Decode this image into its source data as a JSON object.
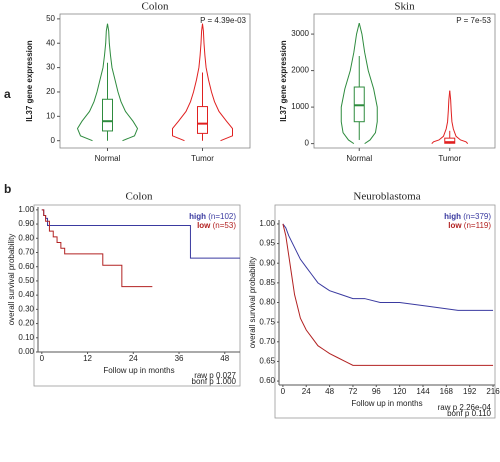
{
  "panel_labels": [
    "a",
    "b"
  ],
  "chart_data": [
    {
      "type": "violin",
      "title": "Colon",
      "ylabel": "IL37 gene expression",
      "annotation": "P = 4.39e-03",
      "categories": [
        "Normal",
        "Tumor"
      ],
      "ylim": [
        -3,
        52
      ],
      "yticks": [
        0,
        10,
        20,
        30,
        40,
        50
      ],
      "violins": [
        {
          "color": "#2e8b3e",
          "levels": [
            0,
            2,
            5,
            8,
            12,
            16,
            20,
            25,
            30,
            35,
            40,
            45,
            48
          ],
          "density": [
            0.5,
            0.9,
            1.0,
            0.85,
            0.6,
            0.45,
            0.35,
            0.25,
            0.15,
            0.1,
            0.06,
            0.04,
            0
          ],
          "box": {
            "min": 0,
            "q1": 4,
            "median": 8,
            "q3": 17,
            "max": 32
          }
        },
        {
          "color": "#e02020",
          "levels": [
            0,
            2,
            5,
            8,
            12,
            16,
            20,
            25,
            30,
            35,
            40,
            45,
            48
          ],
          "density": [
            0.6,
            1.0,
            1.0,
            0.8,
            0.55,
            0.4,
            0.3,
            0.2,
            0.12,
            0.08,
            0.05,
            0.03,
            0
          ],
          "box": {
            "min": 0,
            "q1": 3,
            "median": 7,
            "q3": 14,
            "max": 28
          }
        }
      ]
    },
    {
      "type": "violin",
      "title": "Skin",
      "ylabel": "IL37 gene expression",
      "annotation": "P = 7e-53",
      "categories": [
        "Normal",
        "Tumor"
      ],
      "ylim": [
        -120,
        3550
      ],
      "yticks": [
        0,
        1000,
        2000,
        3000
      ],
      "violins": [
        {
          "color": "#2e8b3e",
          "levels": [
            0,
            100,
            300,
            600,
            1000,
            1500,
            2000,
            2500,
            3000,
            3300
          ],
          "density": [
            0.3,
            0.6,
            0.9,
            1.0,
            1.0,
            0.8,
            0.5,
            0.3,
            0.15,
            0
          ],
          "box": {
            "min": 100,
            "q1": 600,
            "median": 1050,
            "q3": 1550,
            "max": 2400
          }
        },
        {
          "color": "#e02020",
          "levels": [
            0,
            50,
            100,
            200,
            400,
            600,
            900,
            1200,
            1450
          ],
          "density": [
            1.0,
            0.9,
            0.6,
            0.35,
            0.2,
            0.12,
            0.08,
            0.05,
            0
          ],
          "box": {
            "min": 0,
            "q1": 10,
            "median": 40,
            "q3": 150,
            "max": 350
          }
        }
      ]
    },
    {
      "type": "line",
      "title": "Colon",
      "xlabel": "Follow up in months",
      "ylabel": "overall survival probability",
      "xlim": [
        -1,
        52
      ],
      "xticks": [
        0,
        12,
        24,
        36,
        48
      ],
      "ylim": [
        0,
        1.02
      ],
      "yticks": [
        {
          "value": 0,
          "label": "0.00"
        },
        {
          "value": 0.1,
          "label": "0.10"
        },
        {
          "value": 0.2,
          "label": "0.20"
        },
        {
          "value": 0.3,
          "label": "0.30"
        },
        {
          "value": 0.4,
          "label": "0.40"
        },
        {
          "value": 0.5,
          "label": "0.50"
        },
        {
          "value": 0.6,
          "label": "0.60"
        },
        {
          "value": 0.7,
          "label": "0.70"
        },
        {
          "value": 0.8,
          "label": "0.80"
        },
        {
          "value": 0.9,
          "label": "0.90"
        },
        {
          "value": 1,
          "label": "1.00"
        }
      ],
      "legend": "upper right",
      "stats": [
        "raw p 0.027",
        "bonf p 1.000"
      ],
      "series": [
        {
          "name": "high",
          "n_label": "(n=102)",
          "color": "#3a3aa0",
          "x": [
            0,
            0.5,
            0.5,
            1,
            1,
            1.5,
            1.5,
            39,
            39,
            52
          ],
          "values": [
            1,
            1,
            0.96,
            0.96,
            0.94,
            0.94,
            0.89,
            0.89,
            0.66,
            0.66
          ]
        },
        {
          "name": "low",
          "n_label": "(n=53)",
          "color": "#b22222",
          "x": [
            0,
            0.5,
            0.5,
            1,
            1,
            2,
            2,
            3,
            3,
            4,
            4,
            5,
            5,
            6,
            6,
            16,
            16,
            21,
            21,
            29
          ],
          "values": [
            1,
            1,
            0.96,
            0.96,
            0.92,
            0.92,
            0.85,
            0.85,
            0.81,
            0.81,
            0.77,
            0.77,
            0.73,
            0.73,
            0.69,
            0.69,
            0.61,
            0.61,
            0.46,
            0.46
          ]
        }
      ]
    },
    {
      "type": "line",
      "title": "Neuroblastoma",
      "xlabel": "Follow up in months",
      "ylabel": "overall survival probability",
      "xlim": [
        -4,
        218
      ],
      "xticks": [
        0,
        24,
        48,
        72,
        96,
        120,
        144,
        168,
        192,
        216
      ],
      "ylim": [
        0.59,
        1.01
      ],
      "yticks": [
        {
          "value": 0.6,
          "label": "0.60"
        },
        {
          "value": 0.65,
          "label": "0.65"
        },
        {
          "value": 0.7,
          "label": "0.70"
        },
        {
          "value": 0.75,
          "label": "0.75"
        },
        {
          "value": 0.8,
          "label": "0.80"
        },
        {
          "value": 0.85,
          "label": "0.85"
        },
        {
          "value": 0.9,
          "label": "0.90"
        },
        {
          "value": 0.95,
          "label": "0.95"
        },
        {
          "value": 1,
          "label": "1.00"
        }
      ],
      "legend": "upper right",
      "stats": [
        "raw p 2.26e-04",
        "bonf p 0.110"
      ],
      "series": [
        {
          "name": "high",
          "n_label": "(n=379)",
          "color": "#3a3aa0",
          "x": [
            0,
            3,
            6,
            10,
            14,
            18,
            24,
            30,
            36,
            42,
            48,
            60,
            72,
            84,
            100,
            120,
            150,
            180,
            216
          ],
          "values": [
            1,
            0.99,
            0.97,
            0.95,
            0.93,
            0.91,
            0.89,
            0.87,
            0.85,
            0.84,
            0.83,
            0.82,
            0.81,
            0.81,
            0.8,
            0.8,
            0.79,
            0.78,
            0.78
          ]
        },
        {
          "name": "low",
          "n_label": "(n=119)",
          "color": "#b22222",
          "x": [
            0,
            3,
            6,
            9,
            12,
            15,
            18,
            24,
            30,
            36,
            42,
            48,
            56,
            64,
            72,
            216
          ],
          "values": [
            1,
            0.97,
            0.92,
            0.87,
            0.82,
            0.79,
            0.76,
            0.73,
            0.71,
            0.69,
            0.68,
            0.67,
            0.66,
            0.65,
            0.64,
            0.64
          ]
        }
      ]
    }
  ]
}
